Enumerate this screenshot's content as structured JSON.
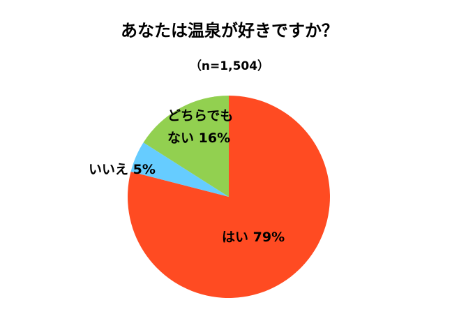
{
  "chart_data": {
    "type": "pie",
    "title": "あなたは温泉が好きですか？",
    "subtitle": "（n=1,504）",
    "categories": [
      "はい",
      "いいえ",
      "どちらでもない"
    ],
    "values": [
      79,
      5,
      16
    ],
    "value_labels": [
      "79%",
      "5%",
      "16%"
    ],
    "colors": [
      "#FF4B22",
      "#66CCFF",
      "#92D050"
    ]
  }
}
